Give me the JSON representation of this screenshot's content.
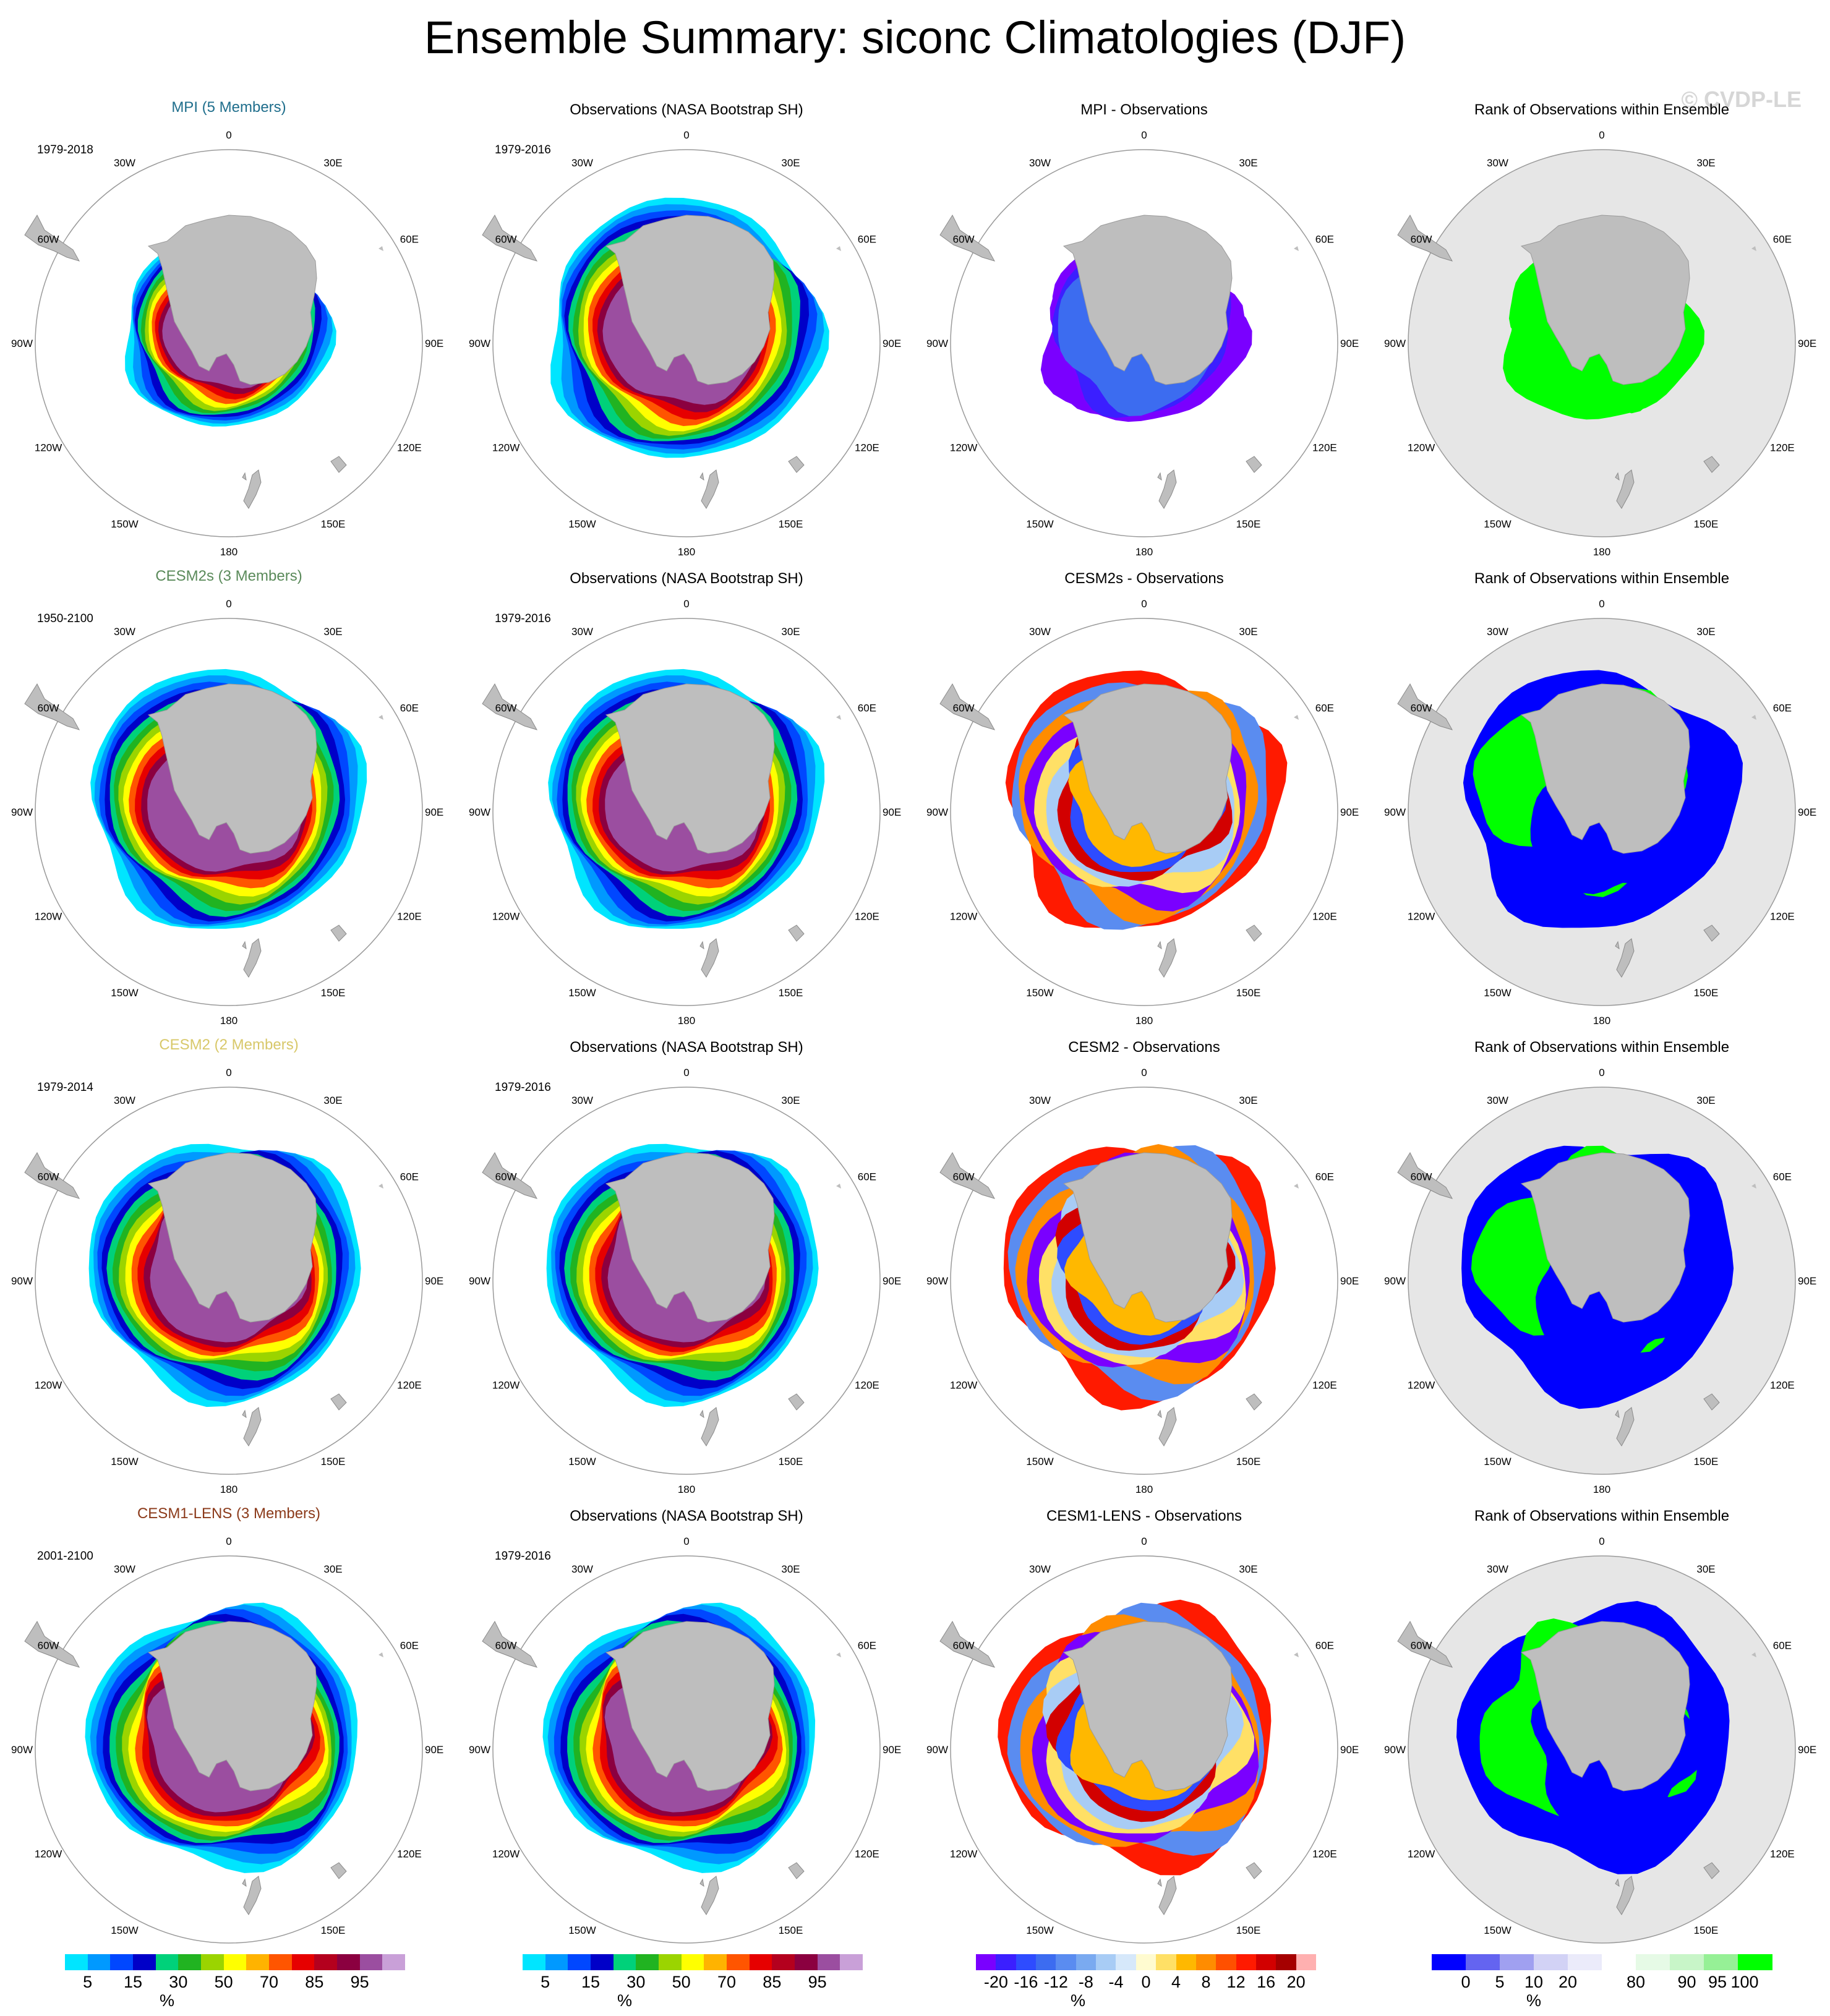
{
  "title": "Ensemble Summary: siconc Climatologies (DJF)",
  "watermark": "© CVDP-LE",
  "lon_labels": [
    "0",
    "30E",
    "60E",
    "90E",
    "120E",
    "150E",
    "180",
    "150W",
    "120W",
    "90W",
    "60W",
    "30W"
  ],
  "colors": {
    "land": "#bebebe",
    "rank_background": "#e6e6e6",
    "circle": "#9a9a9a",
    "title_mpi": "#1f6e8c",
    "title_cesm2s": "#5a8a5a",
    "title_cesm2": "#d8c86a",
    "title_cesm1": "#8b3a1a"
  },
  "rows": [
    {
      "model": {
        "title": "MPI (5 Members)",
        "period": "1979-2018",
        "color": "#1f6e8c"
      },
      "obs": {
        "title": "Observations (NASA Bootstrap SH)",
        "period": "1979-2016"
      },
      "diff": {
        "title": "MPI - Observations"
      },
      "rank": {
        "title": "Rank of Observations within Ensemble"
      }
    },
    {
      "model": {
        "title": "CESM2s (3 Members)",
        "period": "1950-2100",
        "color": "#5a8a5a"
      },
      "obs": {
        "title": "Observations (NASA Bootstrap SH)",
        "period": "1979-2016"
      },
      "diff": {
        "title": "CESM2s - Observations"
      },
      "rank": {
        "title": "Rank of Observations within Ensemble"
      }
    },
    {
      "model": {
        "title": "CESM2 (2 Members)",
        "period": "1979-2014",
        "color": "#d8c86a"
      },
      "obs": {
        "title": "Observations (NASA Bootstrap SH)",
        "period": "1979-2016"
      },
      "diff": {
        "title": "CESM2 - Observations"
      },
      "rank": {
        "title": "Rank of Observations within Ensemble"
      }
    },
    {
      "model": {
        "title": "CESM1-LENS (3 Members)",
        "period": "2001-2100",
        "color": "#8b3a1a"
      },
      "obs": {
        "title": "Observations (NASA Bootstrap SH)",
        "period": "1979-2016"
      },
      "diff": {
        "title": "CESM1-LENS - Observations"
      },
      "rank": {
        "title": "Rank of Observations within Ensemble"
      }
    }
  ],
  "colorbars": [
    {
      "name": "concentration",
      "unit": "%",
      "colors": [
        "#00e5ff",
        "#0099ff",
        "#0047ff",
        "#0000c8",
        "#00d17a",
        "#21b321",
        "#9bd400",
        "#ffff00",
        "#ffb300",
        "#ff5500",
        "#e60000",
        "#b4001e",
        "#8b0040",
        "#9b4ea0",
        "#c9a0d8"
      ],
      "ticks": [
        "5",
        "15",
        "30",
        "50",
        "70",
        "85",
        "95"
      ],
      "tick_index": [
        1,
        3,
        5,
        7,
        9,
        11,
        13
      ]
    },
    {
      "name": "concentration",
      "unit": "%",
      "colors": [
        "#00e5ff",
        "#0099ff",
        "#0047ff",
        "#0000c8",
        "#00d17a",
        "#21b321",
        "#9bd400",
        "#ffff00",
        "#ffb300",
        "#ff5500",
        "#e60000",
        "#b4001e",
        "#8b0040",
        "#9b4ea0",
        "#c9a0d8"
      ],
      "ticks": [
        "5",
        "15",
        "30",
        "50",
        "70",
        "85",
        "95"
      ],
      "tick_index": [
        1,
        3,
        5,
        7,
        9,
        11,
        13
      ]
    },
    {
      "name": "difference",
      "unit": "%",
      "colors": [
        "#7a00ff",
        "#3b1fff",
        "#2e4cff",
        "#3c6cf0",
        "#5a8cf0",
        "#7aaaf0",
        "#a8ccf5",
        "#d6e8fa",
        "#fffbd0",
        "#ffe066",
        "#ffb800",
        "#ff8c00",
        "#ff5000",
        "#ff1a00",
        "#d20000",
        "#a50000",
        "#ffb0b0"
      ],
      "ticks": [
        "-20",
        "-16",
        "-12",
        "-8",
        "-4",
        "0",
        "4",
        "8",
        "12",
        "16",
        "20"
      ],
      "tick_index": [
        1,
        2.5,
        4,
        5.5,
        7,
        8.5,
        10,
        11.5,
        13,
        14.5,
        16
      ]
    },
    {
      "name": "rank",
      "unit": "%",
      "colors": [
        "#0000ff",
        "#6464f0",
        "#a0a0f0",
        "#d2d2f5",
        "#ebebfa",
        "#ffffff",
        "#e6fae6",
        "#c8f5c8",
        "#96f096",
        "#00ff00"
      ],
      "ticks": [
        "0",
        "5",
        "10",
        "20",
        "80",
        "90",
        "95",
        "100"
      ],
      "tick_index": [
        1,
        2,
        3,
        4,
        6,
        7.5,
        8.4,
        9.2
      ]
    }
  ]
}
